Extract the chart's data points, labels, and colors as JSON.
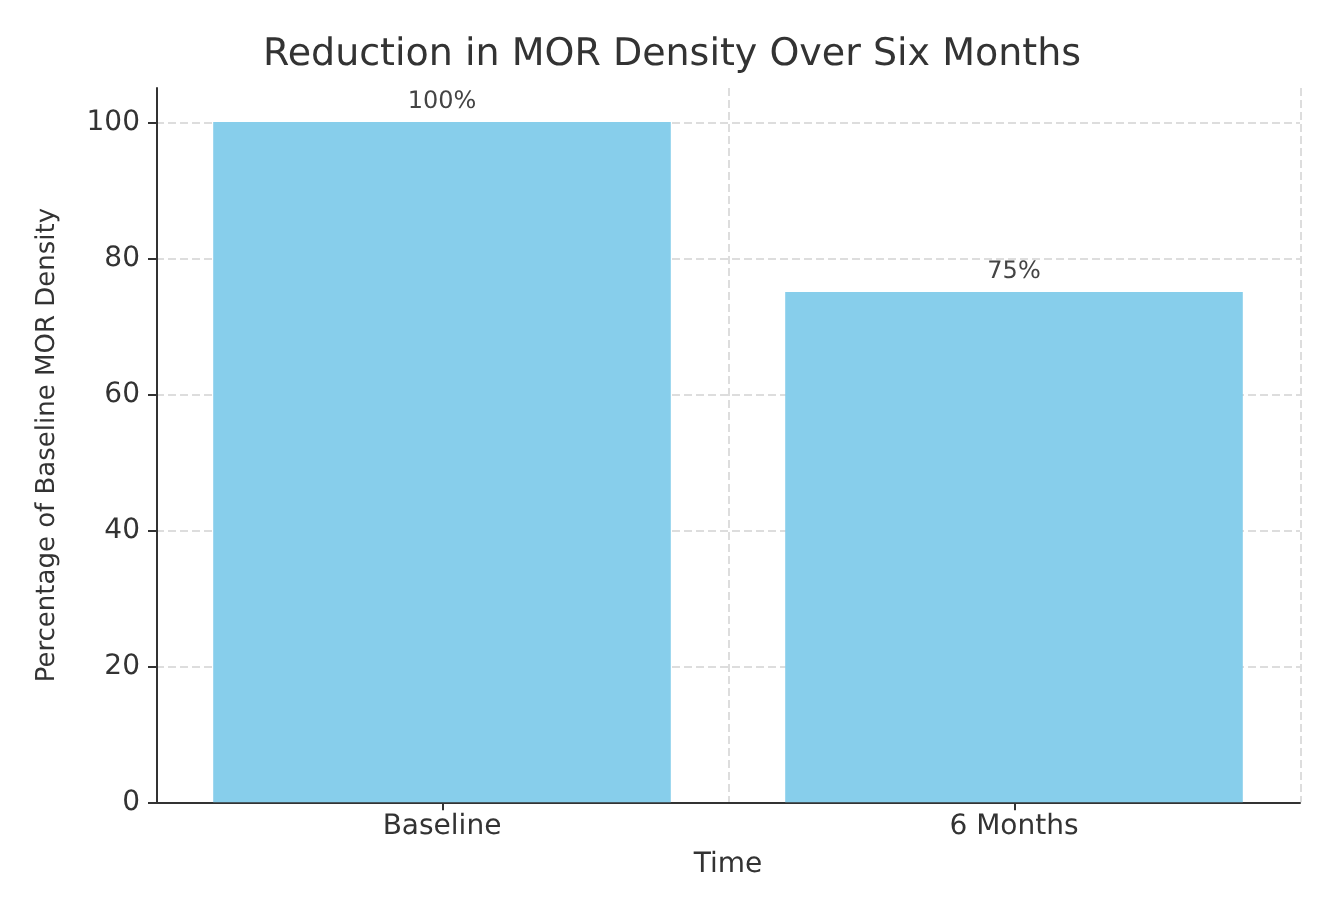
{
  "chart_data": {
    "type": "bar",
    "title": "Reduction in MOR Density Over Six Months",
    "xlabel": "Time",
    "ylabel": "Percentage of Baseline MOR Density",
    "categories": [
      "Baseline",
      "6 Months"
    ],
    "values": [
      100,
      75
    ],
    "color": "#87ceeb",
    "value_labels": [
      "100%",
      "75%"
    ],
    "ylim": [
      0,
      105
    ],
    "yticks": [
      0,
      20,
      40,
      60,
      80,
      100
    ],
    "grid": true
  }
}
